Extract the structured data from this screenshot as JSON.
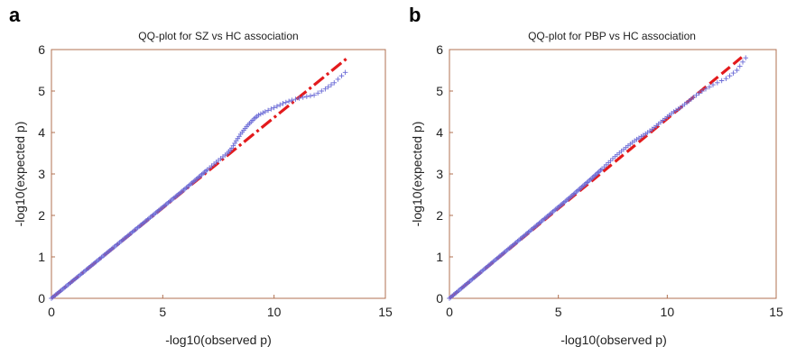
{
  "chart_data": [
    {
      "type": "scatter",
      "panel_label": "a",
      "title": "QQ-plot for SZ vs HC association",
      "xlabel": "-log10(observed p)",
      "ylabel": "-log10(expected p)",
      "xlim": [
        0,
        15
      ],
      "ylim": [
        0,
        6
      ],
      "xticks": [
        "0",
        "5",
        "10",
        "15"
      ],
      "yticks": [
        "0",
        "1",
        "2",
        "3",
        "4",
        "5",
        "6"
      ],
      "grid": false,
      "points_x": [
        0,
        0.5,
        1,
        1.5,
        2,
        2.5,
        3,
        3.5,
        4,
        4.5,
        5,
        5.5,
        6,
        6.5,
        7,
        7.3,
        7.6,
        7.9,
        8.1,
        8.3,
        8.5,
        8.7,
        8.9,
        9.1,
        9.3,
        9.6,
        10.0,
        10.4,
        10.8,
        11.3,
        11.8,
        12.3,
        12.7,
        13.2
      ],
      "points_y": [
        0,
        0.22,
        0.44,
        0.66,
        0.88,
        1.1,
        1.32,
        1.54,
        1.76,
        1.98,
        2.2,
        2.42,
        2.64,
        2.87,
        3.1,
        3.24,
        3.37,
        3.5,
        3.62,
        3.8,
        3.96,
        4.1,
        4.22,
        4.33,
        4.42,
        4.5,
        4.6,
        4.7,
        4.78,
        4.85,
        4.9,
        5.05,
        5.2,
        5.45
      ],
      "reference_line": {
        "x": [
          0,
          13.3
        ],
        "y": [
          0,
          5.8
        ],
        "color": "#e31a1c",
        "style": "dash-dot"
      },
      "marker": "+",
      "marker_color": "#6b6bd6"
    },
    {
      "type": "scatter",
      "panel_label": "b",
      "title": "QQ-plot for PBP vs HC association",
      "xlabel": "-log10(observed p)",
      "ylabel": "-log10(expected p)",
      "xlim": [
        0,
        15
      ],
      "ylim": [
        0,
        6
      ],
      "xticks": [
        "0",
        "5",
        "10",
        "15"
      ],
      "yticks": [
        "0",
        "1",
        "2",
        "3",
        "4",
        "5",
        "6"
      ],
      "grid": false,
      "points_x": [
        0,
        0.5,
        1,
        1.5,
        2,
        2.5,
        3,
        3.5,
        4,
        4.5,
        5,
        5.5,
        6,
        6.5,
        7,
        7.3,
        7.6,
        7.9,
        8.2,
        8.5,
        8.8,
        9.1,
        9.4,
        9.7,
        10.0,
        10.3,
        10.6,
        10.9,
        11.2,
        11.6,
        12.1,
        12.7,
        13.2,
        13.6
      ],
      "points_y": [
        0,
        0.22,
        0.44,
        0.66,
        0.88,
        1.1,
        1.32,
        1.54,
        1.76,
        1.98,
        2.2,
        2.42,
        2.65,
        2.88,
        3.12,
        3.27,
        3.42,
        3.55,
        3.68,
        3.8,
        3.9,
        4.0,
        4.12,
        4.25,
        4.38,
        4.5,
        4.6,
        4.72,
        4.85,
        5.0,
        5.15,
        5.3,
        5.5,
        5.8
      ],
      "reference_line": {
        "x": [
          0,
          13.5
        ],
        "y": [
          0,
          5.85
        ],
        "color": "#e31a1c",
        "style": "dashed"
      },
      "marker": "+",
      "marker_color": "#6b6bd6"
    }
  ]
}
